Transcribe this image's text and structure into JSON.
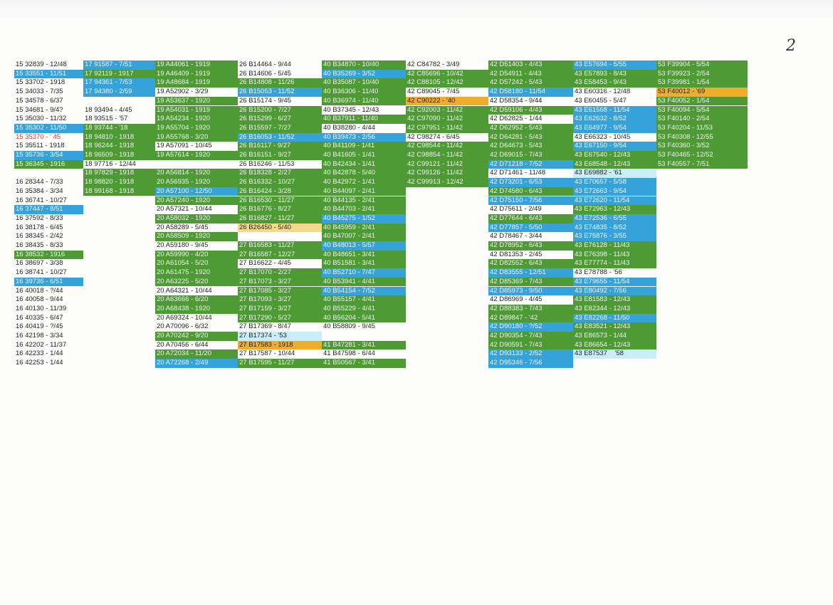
{
  "page_number": "2",
  "columns": [
    {
      "cells": [
        {
          "text": "15 32839 - 12/48"
        },
        {
          "text": "15 33551 - 11/51",
          "fill": "#35a3d9"
        },
        {
          "text": "15 33702 - 1918"
        },
        {
          "text": "15 34033 - 7/35"
        },
        {
          "text": "15 34578 - 6/37"
        },
        {
          "text": "15 34681 - 9/4?"
        },
        {
          "text": "15 35030 - 11/32"
        },
        {
          "text": "15 35302 - 11/50",
          "fill": "#35a3d9"
        },
        {
          "text": "15 35370 - ' 45",
          "color": "#e0302a"
        },
        {
          "text": "15 35511 - 1918"
        },
        {
          "text": "15 35736 - 3/54",
          "fill": "#35a3d9"
        },
        {
          "text": "15 36345 - 1916",
          "fill": "#4e9a34"
        },
        null,
        {
          "text": "16 28344 - 7/33"
        },
        {
          "text": "16 35384 - 3/34"
        },
        {
          "text": "16 36741 - 10/27"
        },
        {
          "text": "16 37447 - 8/51",
          "fill": "#35a3d9"
        },
        {
          "text": "16 37592 - 8/33"
        },
        {
          "text": "16 38178 - 6/45"
        },
        {
          "text": "16 38345 - 2/42"
        },
        {
          "text": "16 38435 - 8/33"
        },
        {
          "text": "16 38532 - 1916",
          "fill": "#4e9a34"
        },
        {
          "text": "16 38697 - 3/38"
        },
        {
          "text": "16 38741 - 10/27"
        },
        {
          "text": "16 39736 - 6/51",
          "fill": "#35a3d9"
        },
        {
          "text": "16 40018 - ?/44"
        },
        {
          "text": "16 40058 - 9/44"
        },
        {
          "text": "16 40130 - 11/39"
        },
        {
          "text": "16 40335 - 6/47"
        },
        {
          "text": "16 40419 - ?/45"
        },
        {
          "text": "16 42198 - 3/34"
        },
        {
          "text": "16 42202 - 11/37"
        },
        {
          "text": "16 42233 - 1/44"
        },
        {
          "text": "16 42253 - 1/44"
        }
      ]
    },
    {
      "cells": [
        {
          "text": "17 91587 - 7/51",
          "fill": "#35a3d9"
        },
        {
          "text": "17 92119 - 1917",
          "fill": "#4e9a34"
        },
        {
          "text": "17 94361 - 7/53",
          "fill": "#35a3d9"
        },
        {
          "text": "17 94380 - 2/59",
          "fill": "#35a3d9"
        },
        null,
        {
          "text": "18 93494 - 4/45"
        },
        {
          "text": "18 93515 - '57"
        },
        {
          "text": "18 93744 - '18",
          "fill": "#4e9a34"
        },
        {
          "text": "18 94810 - 1918",
          "fill": "#4e9a34"
        },
        {
          "text": "18 96244 - 1918",
          "fill": "#4e9a34"
        },
        {
          "text": "18 96509 - 1918",
          "fill": "#4e9a34"
        },
        {
          "text": "18 97716 - 12/44"
        },
        {
          "text": "18 97829 - 1918",
          "fill": "#4e9a34"
        },
        {
          "text": "18 98820 - 1918",
          "fill": "#4e9a34"
        },
        {
          "text": "18 99168 - 1918",
          "fill": "#4e9a34"
        }
      ]
    },
    {
      "cells": [
        {
          "text": "19 A44061 - 1919",
          "fill": "#4e9a34"
        },
        {
          "text": "19 A46409 - 1919",
          "fill": "#4e9a34"
        },
        {
          "text": "19 A48684 - 1919",
          "fill": "#4e9a34"
        },
        {
          "text": "19 A52902 - 3/29"
        },
        {
          "text": "19 A53637 - 1920",
          "fill": "#4e9a34"
        },
        {
          "text": "19 A54031 - 1919",
          "fill": "#4e9a34"
        },
        {
          "text": "19 A54234 - 1920",
          "fill": "#4e9a34"
        },
        {
          "text": "19 A55704 - 1920",
          "fill": "#4e9a34"
        },
        {
          "text": "19 A55768 - 3/20",
          "fill": "#4e9a34"
        },
        {
          "text": "19 A57091 - 10/45"
        },
        {
          "text": "19 A57614 - 1920",
          "fill": "#4e9a34"
        },
        null,
        {
          "text": "20 A56814 - 1920",
          "fill": "#4e9a34"
        },
        {
          "text": "20 A56935 - 1920",
          "fill": "#4e9a34"
        },
        {
          "text": "20 A57100 - 12/50",
          "fill": "#35a3d9"
        },
        {
          "text": "20 A57240 - 1920",
          "fill": "#4e9a34"
        },
        {
          "text": "20 A57321 - 10/44"
        },
        {
          "text": "20 A58032 - 1920",
          "fill": "#4e9a34"
        },
        {
          "text": "20 A58289 - 5/45"
        },
        {
          "text": "20 A58509 - 1920",
          "fill": "#4e9a34"
        },
        {
          "text": "20 A59180 - 9/45"
        },
        {
          "text": "20 A59990 - 4/20",
          "fill": "#4e9a34"
        },
        {
          "text": "20 A61054 - 5/20",
          "fill": "#4e9a34"
        },
        {
          "text": "20 A61475 - 1920",
          "fill": "#4e9a34"
        },
        {
          "text": "20 A63225 - 5/20",
          "fill": "#4e9a34"
        },
        {
          "text": "20 A64321 - 10/44"
        },
        {
          "text": "20 A63666 - 6/20",
          "fill": "#4e9a34"
        },
        {
          "text": "20 A68438 - 1920",
          "fill": "#4e9a34"
        },
        {
          "text": "20 A69324 - 10/44"
        },
        {
          "text": "20 A70096 - 6/32"
        },
        {
          "text": "20 A70242 - 9/20",
          "fill": "#4e9a34"
        },
        {
          "text": "20 A70456 - 6/44"
        },
        {
          "text": "20 A72034 - 11/20",
          "fill": "#4e9a34"
        },
        {
          "text": "20 A72268 - 2/49",
          "fill": "#35a3d9"
        }
      ]
    },
    {
      "cells": [
        {
          "text": "26 B14464 - 9/44"
        },
        {
          "text": "26 B14606 - 5/45"
        },
        {
          "text": "26 B14808 - 11/26",
          "fill": "#4e9a34"
        },
        {
          "text": "26 B15053 - 11/52",
          "fill": "#35a3d9"
        },
        {
          "text": "26 B15174 - 9/45"
        },
        {
          "text": "26 B15200 - 7/27",
          "fill": "#4e9a34"
        },
        {
          "text": "26 B15299 - 6/27",
          "fill": "#4e9a34"
        },
        {
          "text": "26 B15597 - 7/27",
          "fill": "#4e9a34"
        },
        {
          "text": "26 B16053 - 11/52",
          "fill": "#35a3d9"
        },
        {
          "text": "26 B16117 - 9/27",
          "fill": "#4e9a34"
        },
        {
          "text": "26 B16151 - 9/27",
          "fill": "#4e9a34"
        },
        {
          "text": "26 B16246 - 11/53"
        },
        {
          "text": "26 B18328 - 2/27",
          "fill": "#4e9a34"
        },
        {
          "text": "26 B16332 - 10/27",
          "fill": "#4e9a34"
        },
        {
          "text": "26 B16424 - 3/28",
          "fill": "#4e9a34"
        },
        {
          "text": "26 B16530 - 11/27",
          "fill": "#4e9a34"
        },
        {
          "text": "26 B16776 - 8/27",
          "fill": "#4e9a34"
        },
        {
          "text": "26 B16827 - 11/27",
          "fill": "#4e9a34"
        },
        {
          "text": "26 B26450 - 5/40",
          "fill": "#f4d98a"
        },
        null,
        {
          "text": "27 B16583 - 11/27",
          "fill": "#4e9a34"
        },
        {
          "text": "27 B16587 - 12/27",
          "fill": "#4e9a34"
        },
        {
          "text": "27 B16622 - 4/45"
        },
        {
          "text": "27 B17070 - 2/27",
          "fill": "#4e9a34"
        },
        {
          "text": "27 B17073 - 3/27",
          "fill": "#4e9a34"
        },
        {
          "text": "27 B17085 - 3/27",
          "fill": "#4e9a34"
        },
        {
          "text": "27 B17093 - 3/27",
          "fill": "#4e9a34"
        },
        {
          "text": "27 B17159 - 3/27",
          "fill": "#4e9a34"
        },
        {
          "text": "27 B17290 - 5/27",
          "fill": "#4e9a34"
        },
        {
          "text": "27 B17369 - 8/47"
        },
        {
          "text": "27 B17374 - '53",
          "fill": "#c9eef9"
        },
        {
          "text": "27 B17583 - 1918",
          "fill": "#f0ad2c"
        },
        {
          "text": "27 B17587 - 10/44"
        },
        {
          "text": "27 B17595 - 11/27",
          "fill": "#4e9a34"
        }
      ]
    },
    {
      "cells": [
        {
          "text": "40 B34870 - 10/40",
          "fill": "#4e9a34"
        },
        {
          "text": "40 B35269 - 3/52",
          "fill": "#35a3d9"
        },
        {
          "text": "40 B35087 - 10/40",
          "fill": "#4e9a34"
        },
        {
          "text": "40 B36306 - 11/40",
          "fill": "#4e9a34"
        },
        {
          "text": "40 B36974 - 11/40",
          "fill": "#4e9a34"
        },
        {
          "text": "40 B37345 - 12/43"
        },
        {
          "text": "40 B37911 - 11/40",
          "fill": "#4e9a34"
        },
        {
          "text": "40 B38280 - 4/44"
        },
        {
          "text": "40 B39473 - 2/56",
          "fill": "#35a3d9"
        },
        {
          "text": "40 B41109 - 1/41",
          "fill": "#4e9a34"
        },
        {
          "text": "40 B41605 - 1/41",
          "fill": "#4e9a34"
        },
        {
          "text": "40 B42434 - 1/41",
          "fill": "#4e9a34"
        },
        {
          "text": "40 B42878 - 5/40",
          "fill": "#4e9a34"
        },
        {
          "text": "40 B42972 - 1/41",
          "fill": "#4e9a34"
        },
        {
          "text": "40 B44097 - 2/41",
          "fill": "#4e9a34"
        },
        {
          "text": "40 B44135 - 2/41",
          "fill": "#4e9a34"
        },
        {
          "text": "40 B44703 - 2/41",
          "fill": "#4e9a34"
        },
        {
          "text": "40 B45275 - 1/52",
          "fill": "#35a3d9"
        },
        {
          "text": "40 B45959 - 2/41",
          "fill": "#4e9a34"
        },
        {
          "text": "40 B47007 - 2/41",
          "fill": "#4e9a34"
        },
        {
          "text": "40 B48013 - 5/57",
          "fill": "#35a3d9"
        },
        {
          "text": "40 B48651 - 3/41",
          "fill": "#4e9a34"
        },
        {
          "text": "40 B51581 - 3/41",
          "fill": "#4e9a34"
        },
        {
          "text": "40 B52710 - 7/47",
          "fill": "#35a3d9"
        },
        {
          "text": "40 B53941 - 4/41",
          "fill": "#4e9a34"
        },
        {
          "text": "40 B54154 - 7/52",
          "fill": "#35a3d9"
        },
        {
          "text": "40 B55157 - 4/41",
          "fill": "#4e9a34"
        },
        {
          "text": "40 B55229 - 4/41",
          "fill": "#4e9a34"
        },
        {
          "text": "40 B56204 - 5/41",
          "fill": "#4e9a34"
        },
        {
          "text": "40 B58809 - 9/45"
        },
        null,
        {
          "text": "41 B47281 - 3/41",
          "fill": "#4e9a34"
        },
        {
          "text": "41 B47598 - 6/44"
        },
        {
          "text": "41 B50567 - 3/41",
          "fill": "#4e9a34"
        }
      ]
    },
    {
      "cells": [
        {
          "text": "42 C84782 - 3/49"
        },
        {
          "text": "42 C85696 - 10/42",
          "fill": "#4e9a34"
        },
        {
          "text": "42 C88105 - 12/42",
          "fill": "#4e9a34"
        },
        {
          "text": "42 C89045 - 7/45"
        },
        {
          "text": "42 C90222 - '40",
          "fill": "#f0ad2c"
        },
        {
          "text": "42 C92003 - 11/42",
          "fill": "#4e9a34"
        },
        {
          "text": "42 C97090 - 11/42",
          "fill": "#4e9a34"
        },
        {
          "text": "42 C97951 - 11/42",
          "fill": "#4e9a34"
        },
        {
          "text": "42 C98274 - 6/45"
        },
        {
          "text": "42 C98544 - 11/42",
          "fill": "#4e9a34"
        },
        {
          "text": "42 C98854 - 11/42",
          "fill": "#4e9a34"
        },
        {
          "text": "42 C99121 - 11/42",
          "fill": "#4e9a34"
        },
        {
          "text": "42 C99126 - 11/42",
          "fill": "#4e9a34"
        },
        {
          "text": "42 C99913 - 12/42",
          "fill": "#4e9a34"
        }
      ]
    },
    {
      "cells": [
        {
          "text": "42 D51403 - 4/43",
          "fill": "#4e9a34"
        },
        {
          "text": "42 D54911 - 4/43",
          "fill": "#4e9a34"
        },
        {
          "text": "42 D57242 - 5/43",
          "fill": "#4e9a34"
        },
        {
          "text": "42 D58180 - 11/54",
          "fill": "#35a3d9"
        },
        {
          "text": "42 D58354 - 9/44"
        },
        {
          "text": "42 D59106 - 4/43",
          "fill": "#4e9a34"
        },
        {
          "text": "42 D62825 - 1/44"
        },
        {
          "text": "42 D62952 - 5/43",
          "fill": "#4e9a34"
        },
        {
          "text": "42 D64281 - 5/43",
          "fill": "#4e9a34"
        },
        {
          "text": "42 D64673 - 5/43",
          "fill": "#4e9a34"
        },
        {
          "text": "42 D69015 - 7/43",
          "fill": "#4e9a34"
        },
        {
          "text": "42 D71218 - 7/52",
          "fill": "#35a3d9"
        },
        {
          "text": "42 D71461 - 11/48"
        },
        {
          "text": "42 D73201 - 6/53",
          "fill": "#35a3d9"
        },
        {
          "text": "42 D74580 - 6/43",
          "fill": "#4e9a34"
        },
        {
          "text": "42 D75150 - 7/56",
          "fill": "#35a3d9"
        },
        {
          "text": "42 D75611 - 2/49"
        },
        {
          "text": "42 D77644 - 6/43",
          "fill": "#4e9a34"
        },
        {
          "text": "42 D77857 - 5/50",
          "fill": "#35a3d9"
        },
        {
          "text": "42 D78467 - 3/44"
        },
        {
          "text": "42 D78952 - 6/43",
          "fill": "#4e9a34"
        },
        {
          "text": "42 D81353 - 2/45"
        },
        {
          "text": "42 D82552 - 6/43",
          "fill": "#4e9a34"
        },
        {
          "text": "42 D83555 - 12/51",
          "fill": "#35a3d9"
        },
        {
          "text": "42 D85369 - 7/43",
          "fill": "#4e9a34"
        },
        {
          "text": "42 D85973 - 9/50",
          "fill": "#35a3d9"
        },
        {
          "text": "42 D86969 - 4/45"
        },
        {
          "text": "42 D88383 - 7/43",
          "fill": "#4e9a34"
        },
        {
          "text": "42 D89847 - '42",
          "fill": "#4e9a34"
        },
        {
          "text": "42 D90180 - ?/52",
          "fill": "#35a3d9"
        },
        {
          "text": "42 D90354 - 7/43",
          "fill": "#4e9a34"
        },
        {
          "text": "42 D90591 - 7/43",
          "fill": "#4e9a34"
        },
        {
          "text": "42 D93133 - 2/52",
          "fill": "#35a3d9"
        },
        {
          "text": "42 D95346 - 7/56",
          "fill": "#35a3d9"
        }
      ]
    },
    {
      "cells": [
        {
          "text": "43 E57694 - 5/55",
          "fill": "#35a3d9"
        },
        {
          "text": "43 E57893 - 8/43",
          "fill": "#4e9a34"
        },
        {
          "text": "43 E58453 - 9/43",
          "fill": "#4e9a34"
        },
        {
          "text": "43 E60316 - 12/48"
        },
        {
          "text": "43 E60455 - 5/47"
        },
        {
          "text": "43 E61568 - 11/54",
          "fill": "#35a3d9"
        },
        {
          "text": "43 E62632 - 8/52",
          "fill": "#35a3d9"
        },
        {
          "text": "43 E64977 - 9/54",
          "fill": "#35a3d9"
        },
        {
          "text": "43 E66323 - 10/45"
        },
        {
          "text": "43 E67150 - 9/54",
          "fill": "#35a3d9"
        },
        {
          "text": "43 E67540 - 12/43",
          "fill": "#4e9a34"
        },
        {
          "text": "43 E68548 - 12/43",
          "fill": "#4e9a34"
        },
        {
          "text": "43 E69882 - '61",
          "fill": "#c9eef9"
        },
        {
          "text": "43 E70657 - 5/58",
          "fill": "#35a3d9"
        },
        {
          "text": "43 E72663 - 9/54",
          "fill": "#35a3d9"
        },
        {
          "text": "43 E72620 - 11/54",
          "fill": "#35a3d9"
        },
        {
          "text": "43 E72963 - 12/43",
          "fill": "#4e9a34"
        },
        {
          "text": "43 E72536 - 6/55",
          "fill": "#35a3d9"
        },
        {
          "text": "43 E74835 - 8/52",
          "fill": "#35a3d9"
        },
        {
          "text": "43 E75876 - 3/55",
          "fill": "#35a3d9"
        },
        {
          "text": "43 E76128 - 11/43",
          "fill": "#4e9a34"
        },
        {
          "text": "43 E76398 - 11/43",
          "fill": "#4e9a34"
        },
        {
          "text": "43 E77774 - 11/43",
          "fill": "#4e9a34"
        },
        {
          "text": "43 E78788 - '56"
        },
        {
          "text": "43 E79655 - 11/54",
          "fill": "#35a3d9"
        },
        {
          "text": "43 E80492 - 7/56",
          "fill": "#35a3d9"
        },
        {
          "text": "43 E81583 - 12/43",
          "fill": "#4e9a34"
        },
        {
          "text": "43 E82344 - 12/43",
          "fill": "#4e9a34"
        },
        {
          "text": "43 E82268 - 11/50",
          "fill": "#35a3d9"
        },
        {
          "text": "43 E83521 - 12/43",
          "fill": "#4e9a34"
        },
        {
          "text": "43 E86573 - 1/44",
          "fill": "#4e9a34"
        },
        {
          "text": "43 E86654 - 12/43",
          "fill": "#4e9a34"
        },
        {
          "text": "43 E87537    '58",
          "fill": "#c9eef9"
        }
      ]
    },
    {
      "cells": [
        {
          "text": "53 F39904 - 5/54",
          "fill": "#4e9a34"
        },
        {
          "text": "53 F39923 - 2/54",
          "fill": "#4e9a34"
        },
        {
          "text": "53 F39981 - 1/54",
          "fill": "#4e9a34"
        },
        {
          "text": "53 F40012 - '69",
          "fill": "#f0ad2c"
        },
        {
          "text": "53 F40052 - 1/54",
          "fill": "#4e9a34"
        },
        {
          "text": "53 F40094 - 5/54",
          "fill": "#4e9a34"
        },
        {
          "text": "53 F40140 - 2/54",
          "fill": "#4e9a34"
        },
        {
          "text": "53 F40204 - 11/53",
          "fill": "#4e9a34"
        },
        {
          "text": "53 F40308 - 12/55",
          "fill": "#4e9a34"
        },
        {
          "text": "53 F40360 - 3/52",
          "fill": "#4e9a34"
        },
        {
          "text": "53 F40465 - 12/52",
          "fill": "#4e9a34"
        },
        {
          "text": "53 F40557 - 7/51",
          "fill": "#4e9a34"
        }
      ]
    }
  ]
}
